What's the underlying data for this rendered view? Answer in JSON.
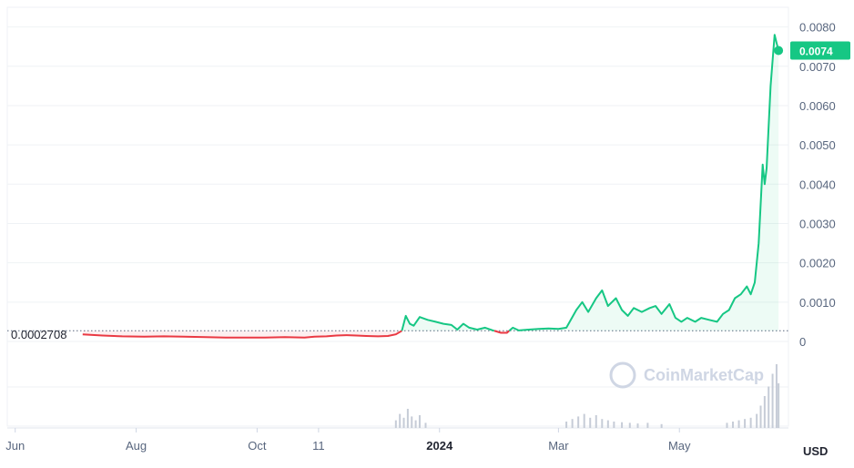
{
  "chart_data": {
    "type": "line",
    "unit": "USD",
    "ylim": [
      0,
      0.0085
    ],
    "y_ticks": [
      "0",
      "0.0010",
      "0.0020",
      "0.0030",
      "0.0040",
      "0.0050",
      "0.0060",
      "0.0070",
      "0.0080"
    ],
    "y_tick_values": [
      0,
      0.001,
      0.002,
      0.003,
      0.004,
      0.005,
      0.006,
      0.007,
      0.008
    ],
    "x_ticks": [
      {
        "label": "Jun",
        "date": "2023-06-01",
        "bold": false
      },
      {
        "label": "Aug",
        "date": "2023-08-01",
        "bold": false
      },
      {
        "label": "Oct",
        "date": "2023-10-01",
        "bold": false
      },
      {
        "label": "11",
        "date": "2023-11-01",
        "bold": false
      },
      {
        "label": "2024",
        "date": "2024-01-01",
        "bold": true
      },
      {
        "label": "Mar",
        "date": "2024-03-01",
        "bold": false
      },
      {
        "label": "May",
        "date": "2024-05-01",
        "bold": false
      }
    ],
    "reference": {
      "label": "0.0002708",
      "value": 0.0002708
    },
    "current": {
      "label": "0.0074",
      "value": 0.0074
    },
    "watermark": "CoinMarketCap",
    "colors": {
      "up": "#16c784",
      "down": "#ea3943",
      "current_badge": "#16c784",
      "grid": "#eff2f5"
    },
    "series": [
      {
        "points": [
          [
            "2023-07-05",
            0.00018
          ],
          [
            "2023-07-15",
            0.00015
          ],
          [
            "2023-07-25",
            0.00013
          ],
          [
            "2023-08-05",
            0.00012
          ],
          [
            "2023-08-15",
            0.00013
          ],
          [
            "2023-08-25",
            0.00012
          ],
          [
            "2023-09-05",
            0.00011
          ],
          [
            "2023-09-15",
            0.0001
          ],
          [
            "2023-09-25",
            0.0001
          ],
          [
            "2023-10-05",
            0.0001
          ],
          [
            "2023-10-15",
            0.00011
          ],
          [
            "2023-10-25",
            0.0001
          ],
          [
            "2023-10-30",
            0.00012
          ],
          [
            "2023-11-05",
            0.00013
          ],
          [
            "2023-11-10",
            0.00015
          ],
          [
            "2023-11-15",
            0.00016
          ],
          [
            "2023-11-20",
            0.00015
          ],
          [
            "2023-11-25",
            0.00014
          ],
          [
            "2023-12-01",
            0.00013
          ],
          [
            "2023-12-06",
            0.00014
          ],
          [
            "2023-12-10",
            0.00018
          ],
          [
            "2023-12-13",
            0.00027
          ],
          [
            "2023-12-15",
            0.00065
          ],
          [
            "2023-12-17",
            0.00045
          ],
          [
            "2023-12-19",
            0.0004
          ],
          [
            "2023-12-22",
            0.00062
          ],
          [
            "2023-12-26",
            0.00055
          ],
          [
            "2023-12-30",
            0.0005
          ],
          [
            "2024-01-03",
            0.00045
          ],
          [
            "2024-01-07",
            0.00042
          ],
          [
            "2024-01-10",
            0.0003
          ],
          [
            "2024-01-13",
            0.00045
          ],
          [
            "2024-01-16",
            0.00035
          ],
          [
            "2024-01-20",
            0.0003
          ],
          [
            "2024-01-24",
            0.00035
          ],
          [
            "2024-01-28",
            0.00028
          ],
          [
            "2024-02-01",
            0.00022
          ],
          [
            "2024-02-04",
            0.00022
          ],
          [
            "2024-02-07",
            0.00035
          ],
          [
            "2024-02-10",
            0.00028
          ],
          [
            "2024-02-15",
            0.0003
          ],
          [
            "2024-02-20",
            0.00032
          ],
          [
            "2024-02-25",
            0.00033
          ],
          [
            "2024-03-01",
            0.00032
          ],
          [
            "2024-03-05",
            0.00035
          ],
          [
            "2024-03-10",
            0.0008
          ],
          [
            "2024-03-13",
            0.001
          ],
          [
            "2024-03-16",
            0.00075
          ],
          [
            "2024-03-20",
            0.0011
          ],
          [
            "2024-03-23",
            0.0013
          ],
          [
            "2024-03-26",
            0.0009
          ],
          [
            "2024-03-30",
            0.0011
          ],
          [
            "2024-04-02",
            0.0008
          ],
          [
            "2024-04-05",
            0.00065
          ],
          [
            "2024-04-08",
            0.00085
          ],
          [
            "2024-04-12",
            0.00075
          ],
          [
            "2024-04-16",
            0.00085
          ],
          [
            "2024-04-19",
            0.0009
          ],
          [
            "2024-04-22",
            0.0007
          ],
          [
            "2024-04-26",
            0.00095
          ],
          [
            "2024-04-29",
            0.0006
          ],
          [
            "2024-05-02",
            0.0005
          ],
          [
            "2024-05-05",
            0.0006
          ],
          [
            "2024-05-09",
            0.0005
          ],
          [
            "2024-05-12",
            0.0006
          ],
          [
            "2024-05-16",
            0.00055
          ],
          [
            "2024-05-20",
            0.0005
          ],
          [
            "2024-05-23",
            0.0007
          ],
          [
            "2024-05-26",
            0.0008
          ],
          [
            "2024-05-29",
            0.0011
          ],
          [
            "2024-06-01",
            0.0012
          ],
          [
            "2024-06-04",
            0.0014
          ],
          [
            "2024-06-06",
            0.0012
          ],
          [
            "2024-06-08",
            0.0015
          ],
          [
            "2024-06-10",
            0.0025
          ],
          [
            "2024-06-12",
            0.0045
          ],
          [
            "2024-06-13",
            0.004
          ],
          [
            "2024-06-14",
            0.0044
          ],
          [
            "2024-06-16",
            0.0065
          ],
          [
            "2024-06-18",
            0.0078
          ],
          [
            "2024-06-19",
            0.0076
          ],
          [
            "2024-06-20",
            0.0074
          ]
        ]
      }
    ],
    "volume": [
      [
        "2023-12-10",
        0.12
      ],
      [
        "2023-12-12",
        0.22
      ],
      [
        "2023-12-14",
        0.16
      ],
      [
        "2023-12-16",
        0.3
      ],
      [
        "2023-12-18",
        0.18
      ],
      [
        "2023-12-20",
        0.12
      ],
      [
        "2023-12-22",
        0.2
      ],
      [
        "2023-12-25",
        0.08
      ],
      [
        "2024-03-05",
        0.1
      ],
      [
        "2024-03-08",
        0.14
      ],
      [
        "2024-03-11",
        0.18
      ],
      [
        "2024-03-14",
        0.22
      ],
      [
        "2024-03-17",
        0.16
      ],
      [
        "2024-03-20",
        0.2
      ],
      [
        "2024-03-23",
        0.14
      ],
      [
        "2024-03-26",
        0.12
      ],
      [
        "2024-03-29",
        0.1
      ],
      [
        "2024-04-02",
        0.09
      ],
      [
        "2024-04-06",
        0.08
      ],
      [
        "2024-04-10",
        0.07
      ],
      [
        "2024-04-15",
        0.08
      ],
      [
        "2024-04-22",
        0.06
      ],
      [
        "2024-05-25",
        0.08
      ],
      [
        "2024-05-28",
        0.1
      ],
      [
        "2024-05-31",
        0.12
      ],
      [
        "2024-06-03",
        0.14
      ],
      [
        "2024-06-06",
        0.16
      ],
      [
        "2024-06-09",
        0.22
      ],
      [
        "2024-06-11",
        0.35
      ],
      [
        "2024-06-13",
        0.5
      ],
      [
        "2024-06-15",
        0.65
      ],
      [
        "2024-06-17",
        0.85
      ],
      [
        "2024-06-19",
        1.0
      ],
      [
        "2024-06-20",
        0.7
      ]
    ]
  }
}
